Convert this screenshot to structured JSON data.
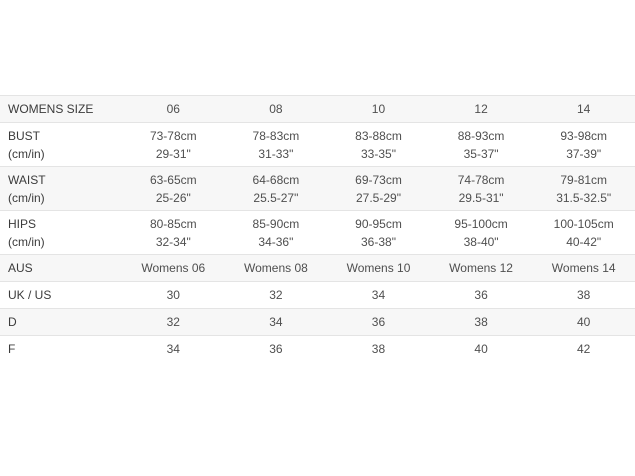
{
  "colors": {
    "stripe_row_bg": "#f7f7f7",
    "row_border": "#e4e4e4",
    "label_text": "#3b3b3b",
    "value_text": "#4f4f4f"
  },
  "table": {
    "header": {
      "label": "WOMENS SIZE",
      "sizes": [
        "06",
        "08",
        "10",
        "12",
        "14"
      ]
    },
    "rows": [
      {
        "id": "bust",
        "label": "BUST",
        "sublabel": "(cm/in)",
        "cells": [
          {
            "cm": "73-78cm",
            "in": "29-31\""
          },
          {
            "cm": "78-83cm",
            "in": "31-33\""
          },
          {
            "cm": "83-88cm",
            "in": "33-35\""
          },
          {
            "cm": "88-93cm",
            "in": "35-37\""
          },
          {
            "cm": "93-98cm",
            "in": "37-39\""
          }
        ]
      },
      {
        "id": "waist",
        "label": "WAIST",
        "sublabel": "(cm/in)",
        "cells": [
          {
            "cm": "63-65cm",
            "in": "25-26\""
          },
          {
            "cm": "64-68cm",
            "in": "25.5-27\""
          },
          {
            "cm": "69-73cm",
            "in": "27.5-29\""
          },
          {
            "cm": "74-78cm",
            "in": "29.5-31\""
          },
          {
            "cm": "79-81cm",
            "in": "31.5-32.5\""
          }
        ]
      },
      {
        "id": "hips",
        "label": "HIPS",
        "sublabel": "(cm/in)",
        "cells": [
          {
            "cm": "80-85cm",
            "in": "32-34\""
          },
          {
            "cm": "85-90cm",
            "in": "34-36\""
          },
          {
            "cm": "90-95cm",
            "in": "36-38\""
          },
          {
            "cm": "95-100cm",
            "in": "38-40\""
          },
          {
            "cm": "100-105cm",
            "in": "40-42\""
          }
        ]
      },
      {
        "id": "aus",
        "label": "AUS",
        "values": [
          "Womens 06",
          "Womens 08",
          "Womens 10",
          "Womens 12",
          "Womens 14"
        ]
      },
      {
        "id": "uk_us",
        "label": "UK / US",
        "values": [
          "30",
          "32",
          "34",
          "36",
          "38"
        ]
      },
      {
        "id": "d",
        "label": "D",
        "values": [
          "32",
          "34",
          "36",
          "38",
          "40"
        ]
      },
      {
        "id": "f",
        "label": "F",
        "values": [
          "34",
          "36",
          "38",
          "40",
          "42"
        ]
      }
    ]
  }
}
